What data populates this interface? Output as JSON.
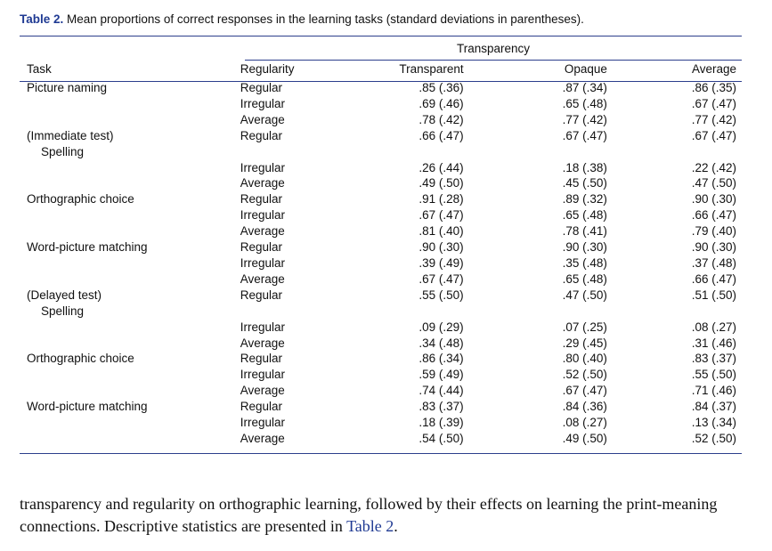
{
  "caption": {
    "label": "Table 2.",
    "text": " Mean proportions of correct responses in the learning tasks (standard deviations in parentheses)."
  },
  "spanning_header": "Transparency",
  "columns": {
    "task": "Task",
    "regularity": "Regularity",
    "transparent": "Transparent",
    "opaque": "Opaque",
    "average": "Average"
  },
  "rows": [
    {
      "task": "Picture naming",
      "task2": "",
      "reg": "Regular",
      "tr": ".85 (.36)",
      "op": ".87 (.34)",
      "av": ".86 (.35)"
    },
    {
      "task": "",
      "task2": "",
      "reg": "Irregular",
      "tr": ".69 (.46)",
      "op": ".65 (.48)",
      "av": ".67 (.47)"
    },
    {
      "task": "",
      "task2": "",
      "reg": "Average",
      "tr": ".78 (.42)",
      "op": ".77 (.42)",
      "av": ".77 (.42)"
    },
    {
      "task": "(Immediate test)",
      "task2": "Spelling",
      "reg": "Regular",
      "tr": ".66 (.47)",
      "op": ".67 (.47)",
      "av": ".67 (.47)"
    },
    {
      "task": "",
      "task2": "",
      "reg": "Irregular",
      "tr": ".26 (.44)",
      "op": ".18 (.38)",
      "av": ".22 (.42)"
    },
    {
      "task": "",
      "task2": "",
      "reg": "Average",
      "tr": ".49 (.50)",
      "op": ".45 (.50)",
      "av": ".47 (.50)"
    },
    {
      "task": "Orthographic choice",
      "task2": "",
      "reg": "Regular",
      "tr": ".91 (.28)",
      "op": ".89 (.32)",
      "av": ".90 (.30)"
    },
    {
      "task": "",
      "task2": "",
      "reg": "Irregular",
      "tr": ".67 (.47)",
      "op": ".65 (.48)",
      "av": ".66 (.47)"
    },
    {
      "task": "",
      "task2": "",
      "reg": "Average",
      "tr": ".81 (.40)",
      "op": ".78 (.41)",
      "av": ".79 (.40)"
    },
    {
      "task": "Word-picture matching",
      "task2": "",
      "reg": "Regular",
      "tr": ".90 (.30)",
      "op": ".90 (.30)",
      "av": ".90 (.30)"
    },
    {
      "task": "",
      "task2": "",
      "reg": "Irregular",
      "tr": ".39 (.49)",
      "op": ".35 (.48)",
      "av": ".37 (.48)"
    },
    {
      "task": "",
      "task2": "",
      "reg": "Average",
      "tr": ".67 (.47)",
      "op": ".65 (.48)",
      "av": ".66 (.47)"
    },
    {
      "task": "(Delayed test)",
      "task2": "Spelling",
      "reg": "Regular",
      "tr": ".55 (.50)",
      "op": ".47 (.50)",
      "av": ".51 (.50)"
    },
    {
      "task": "",
      "task2": "",
      "reg": "Irregular",
      "tr": ".09 (.29)",
      "op": ".07 (.25)",
      "av": ".08 (.27)"
    },
    {
      "task": "",
      "task2": "",
      "reg": "Average",
      "tr": ".34 (.48)",
      "op": ".29 (.45)",
      "av": ".31 (.46)"
    },
    {
      "task": "Orthographic choice",
      "task2": "",
      "reg": "Regular",
      "tr": ".86 (.34)",
      "op": ".80 (.40)",
      "av": ".83 (.37)"
    },
    {
      "task": "",
      "task2": "",
      "reg": "Irregular",
      "tr": ".59 (.49)",
      "op": ".52 (.50)",
      "av": ".55 (.50)"
    },
    {
      "task": "",
      "task2": "",
      "reg": "Average",
      "tr": ".74 (.44)",
      "op": ".67 (.47)",
      "av": ".71 (.46)"
    },
    {
      "task": "Word-picture matching",
      "task2": "",
      "reg": "Regular",
      "tr": ".83 (.37)",
      "op": ".84 (.36)",
      "av": ".84 (.37)"
    },
    {
      "task": "",
      "task2": "",
      "reg": "Irregular",
      "tr": ".18 (.39)",
      "op": ".08 (.27)",
      "av": ".13 (.34)"
    },
    {
      "task": "",
      "task2": "",
      "reg": "Average",
      "tr": ".54 (.50)",
      "op": ".49 (.50)",
      "av": ".52 (.50)"
    }
  ],
  "body_text": {
    "before": "transparency and regularity on orthographic learning, followed by their effects on learning the print-meaning connections. Descriptive statistics are presented in ",
    "ref": "Table 2",
    "after": "."
  }
}
